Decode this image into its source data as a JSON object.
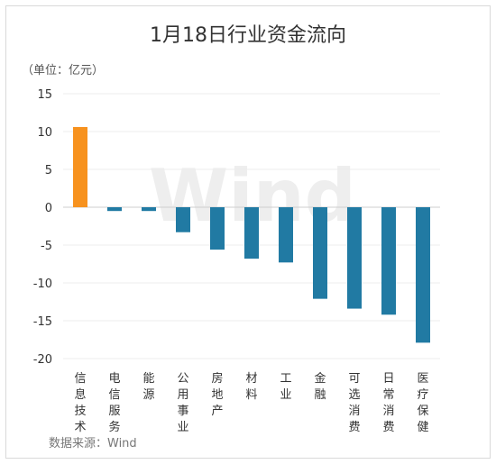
{
  "chart_data": {
    "type": "bar",
    "title": "1月18日行业资金流向",
    "unit_label": "（单位：亿元）",
    "source": "数据来源：Wind",
    "watermark": "Wind",
    "categories": [
      "信息技术",
      "电信服务",
      "能源",
      "公用事业",
      "房地产",
      "材料",
      "工业",
      "金融",
      "可选消费",
      "日常消费",
      "医疗保健"
    ],
    "values": [
      10.6,
      -0.5,
      -0.5,
      -3.3,
      -5.6,
      -6.8,
      -7.3,
      -12.1,
      -13.4,
      -14.2,
      -17.9
    ],
    "ylim": [
      -20,
      15
    ],
    "yticks": [
      15,
      10,
      5,
      0,
      -5,
      -10,
      -15,
      -20
    ],
    "grid": true,
    "colors": {
      "positive": "#f7921e",
      "negative": "#217aa3"
    }
  }
}
